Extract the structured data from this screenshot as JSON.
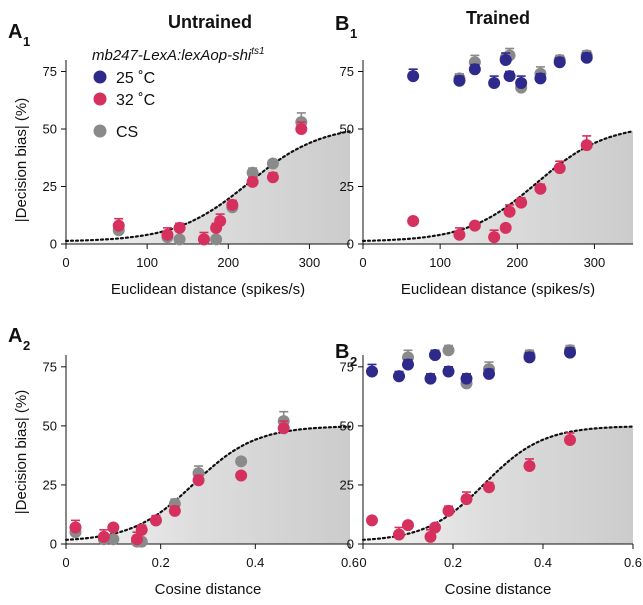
{
  "figure": {
    "col_titles": [
      "Untrained",
      "Trained"
    ],
    "legend": {
      "title_main": "mb247-LexA:lexAop-shi",
      "title_sup": "ts1",
      "entries": [
        {
          "label": "25 ˚C",
          "color": "#2e2a8c"
        },
        {
          "label": "32 ˚C",
          "color": "#d6305f"
        },
        {
          "label": "CS",
          "color": "#8a8a8a"
        }
      ]
    },
    "ylabel": "|Decision bias| (%)"
  },
  "chart_data": [
    {
      "panel": "A",
      "panel_sub": "1",
      "type": "scatter",
      "xlabel": "Euclidean distance (spikes/s)",
      "xlim": [
        0,
        350
      ],
      "ylim": [
        0,
        80
      ],
      "xticks": [
        "0",
        "100",
        "200",
        "300"
      ],
      "xtick_values": [
        0,
        100,
        200,
        300
      ],
      "yticks": [
        "0",
        "25",
        "50",
        "75"
      ],
      "ytick_values": [
        0,
        25,
        50,
        75
      ],
      "grid": false,
      "curve": {
        "style": "dotted",
        "min": 1,
        "max": 52,
        "midpoint": 225,
        "slope": 45
      },
      "series": [
        {
          "name": "CS",
          "color": "#8a8a8a",
          "x": [
            65,
            125,
            140,
            170,
            185,
            205,
            230,
            255,
            290
          ],
          "y": [
            6,
            3,
            2,
            2,
            2,
            16,
            31,
            35,
            53
          ],
          "err": [
            0,
            0,
            0,
            0,
            0,
            2,
            2,
            0,
            4
          ]
        },
        {
          "name": "25 ˚C",
          "color": "#2e2a8c",
          "x": [],
          "y": [],
          "err": []
        },
        {
          "name": "32 ˚C",
          "color": "#d6305f",
          "x": [
            65,
            125,
            140,
            170,
            185,
            190,
            205,
            230,
            255,
            290
          ],
          "y": [
            8,
            4,
            7,
            2,
            7,
            10,
            17,
            27,
            29,
            50
          ],
          "err": [
            3,
            3,
            2,
            3,
            2,
            3,
            2,
            2,
            2,
            3
          ]
        }
      ]
    },
    {
      "panel": "B",
      "panel_sub": "1",
      "type": "scatter",
      "xlabel": "Euclidean distance (spikes/s)",
      "xlim": [
        0,
        350
      ],
      "ylim": [
        0,
        80
      ],
      "xticks": [
        "0",
        "100",
        "200",
        "300"
      ],
      "xtick_values": [
        0,
        100,
        200,
        300
      ],
      "yticks": [
        "0",
        "25",
        "50",
        "75"
      ],
      "ytick_values": [
        0,
        25,
        50,
        75
      ],
      "grid": false,
      "curve": {
        "style": "dotted",
        "min": 1,
        "max": 52,
        "midpoint": 225,
        "slope": 45
      },
      "series": [
        {
          "name": "CS",
          "color": "#8a8a8a",
          "x": [
            125,
            145,
            185,
            190,
            205,
            230,
            255,
            290
          ],
          "y": [
            72,
            79,
            81,
            82,
            68,
            74,
            80,
            82
          ],
          "err": [
            2,
            3,
            2,
            3,
            2,
            3,
            2,
            2
          ]
        },
        {
          "name": "25 ˚C",
          "color": "#2e2a8c",
          "x": [
            65,
            125,
            145,
            170,
            185,
            190,
            205,
            230,
            255,
            290
          ],
          "y": [
            73,
            71,
            76,
            70,
            80,
            73,
            70,
            72,
            79,
            81
          ],
          "err": [
            3,
            2,
            2,
            3,
            3,
            2,
            3,
            2,
            2,
            2
          ]
        },
        {
          "name": "32 ˚C",
          "color": "#d6305f",
          "x": [
            65,
            125,
            145,
            170,
            185,
            190,
            205,
            230,
            255,
            290
          ],
          "y": [
            10,
            4,
            8,
            3,
            7,
            14,
            18,
            24,
            33,
            43
          ],
          "err": [
            0,
            3,
            0,
            3,
            0,
            3,
            2,
            2,
            3,
            4
          ]
        }
      ]
    },
    {
      "panel": "A",
      "panel_sub": "2",
      "type": "scatter",
      "xlabel": "Cosine distance",
      "xlim": [
        0,
        0.6
      ],
      "ylim": [
        0,
        80
      ],
      "xticks": [
        "0",
        "0.2",
        "0.4",
        "0.6"
      ],
      "xtick_values": [
        0,
        0.2,
        0.4,
        0.6
      ],
      "yticks": [
        "0",
        "25",
        "50",
        "75"
      ],
      "ytick_values": [
        0,
        25,
        50,
        75
      ],
      "grid": false,
      "curve": {
        "style": "dotted",
        "min": 1,
        "max": 50,
        "midpoint": 0.27,
        "slope": 0.065
      },
      "series": [
        {
          "name": "CS",
          "color": "#8a8a8a",
          "x": [
            0.02,
            0.08,
            0.1,
            0.15,
            0.16,
            0.19,
            0.23,
            0.28,
            0.37,
            0.46
          ],
          "y": [
            5,
            2,
            2,
            1,
            1,
            10,
            17,
            30,
            35,
            52
          ],
          "err": [
            0,
            0,
            0,
            0,
            0,
            0,
            2,
            3,
            0,
            4
          ]
        },
        {
          "name": "25 ˚C",
          "color": "#2e2a8c",
          "x": [],
          "y": [],
          "err": []
        },
        {
          "name": "32 ˚C",
          "color": "#d6305f",
          "x": [
            0.02,
            0.08,
            0.1,
            0.15,
            0.16,
            0.19,
            0.23,
            0.28,
            0.37,
            0.46
          ],
          "y": [
            7,
            3,
            7,
            2,
            6,
            10,
            14,
            27,
            29,
            49
          ],
          "err": [
            3,
            3,
            0,
            3,
            2,
            2,
            2,
            2,
            0,
            3
          ]
        }
      ]
    },
    {
      "panel": "B",
      "panel_sub": "2",
      "type": "scatter",
      "xlabel": "Cosine distance",
      "xlim": [
        0,
        0.6
      ],
      "ylim": [
        0,
        80
      ],
      "xticks": [
        "0",
        "0.2",
        "0.4",
        "0.6"
      ],
      "xtick_values": [
        0,
        0.2,
        0.4,
        0.6
      ],
      "yticks": [
        "0",
        "25",
        "50",
        "75"
      ],
      "ytick_values": [
        0,
        25,
        50,
        75
      ],
      "grid": false,
      "curve": {
        "style": "dotted",
        "min": 1,
        "max": 50,
        "midpoint": 0.27,
        "slope": 0.065
      },
      "series": [
        {
          "name": "CS",
          "color": "#8a8a8a",
          "x": [
            0.08,
            0.1,
            0.16,
            0.19,
            0.23,
            0.28,
            0.37,
            0.46
          ],
          "y": [
            71,
            79,
            80,
            82,
            68,
            74,
            80,
            82
          ],
          "err": [
            2,
            3,
            2,
            2,
            2,
            3,
            2,
            2
          ]
        },
        {
          "name": "25 ˚C",
          "color": "#2e2a8c",
          "x": [
            0.02,
            0.08,
            0.1,
            0.15,
            0.16,
            0.19,
            0.23,
            0.28,
            0.37,
            0.46
          ],
          "y": [
            73,
            71,
            76,
            70,
            80,
            73,
            70,
            72,
            79,
            81
          ],
          "err": [
            3,
            2,
            2,
            2,
            2,
            2,
            2,
            2,
            2,
            2
          ]
        },
        {
          "name": "32 ˚C",
          "color": "#d6305f",
          "x": [
            0.02,
            0.08,
            0.1,
            0.15,
            0.16,
            0.19,
            0.23,
            0.28,
            0.37,
            0.46
          ],
          "y": [
            10,
            4,
            8,
            3,
            7,
            14,
            19,
            24,
            33,
            44
          ],
          "err": [
            0,
            3,
            0,
            3,
            0,
            2,
            3,
            2,
            3,
            3
          ]
        }
      ]
    }
  ]
}
